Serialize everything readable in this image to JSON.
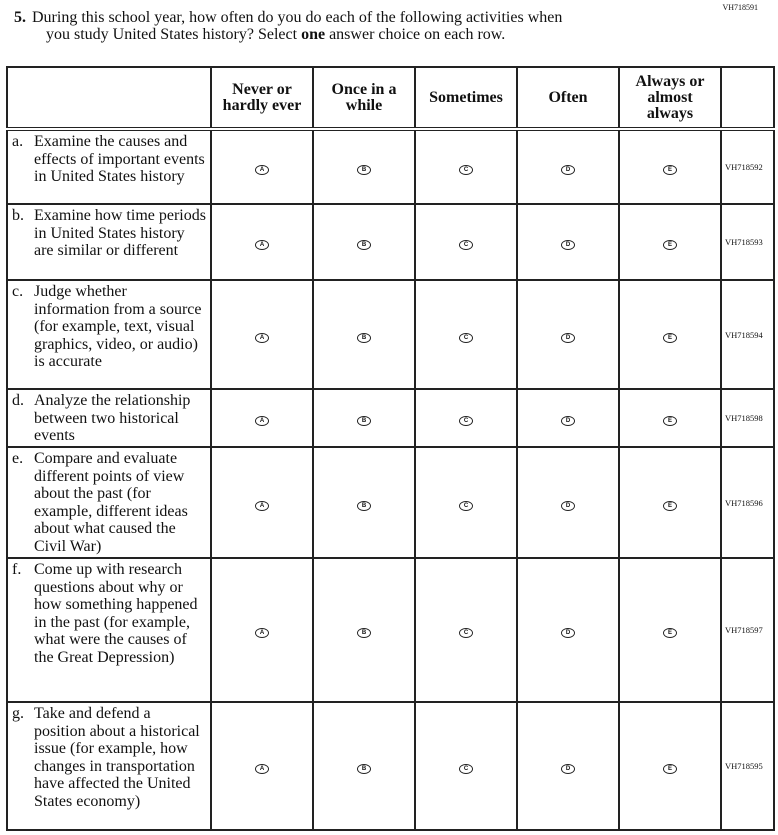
{
  "form_code": "VH718591",
  "question": {
    "number": "5.",
    "line1": "During this school year, how often do you do each of the following activities when",
    "line2_pre": "you study United States history? Select ",
    "line2_bold": "one",
    "line2_post": " answer choice on each row."
  },
  "columns": [
    "Never or hardly ever",
    "Once in a while",
    "Sometimes",
    "Often",
    "Always or almost always"
  ],
  "bubble_letters": [
    "A",
    "B",
    "C",
    "D",
    "E"
  ],
  "rows": [
    {
      "letter": "a.",
      "text": "Examine the causes and effects of important events in United States history",
      "code": "VH718592"
    },
    {
      "letter": "b.",
      "text": "Examine how time periods in United States history are similar or different",
      "code": "VH718593"
    },
    {
      "letter": "c.",
      "text": "Judge whether information from a source (for example, text, visual graphics, video, or audio) is accurate",
      "code": "VH718594"
    },
    {
      "letter": "d.",
      "text": "Analyze the relationship between two historical events",
      "code": "VH718598"
    },
    {
      "letter": "e.",
      "text": "Compare and evaluate different points of view about the past (for example, different ideas about what caused the Civil War)",
      "code": "VH718596"
    },
    {
      "letter": "f.",
      "text": "Come up with research questions about why or how something happened in the past (for example, what were the causes of the Great Depression)",
      "code": "VH718597"
    },
    {
      "letter": "g.",
      "text": "Take and defend a position about a historical issue (for example, how changes in transportation have affected the United States economy)",
      "code": "VH718595"
    }
  ]
}
